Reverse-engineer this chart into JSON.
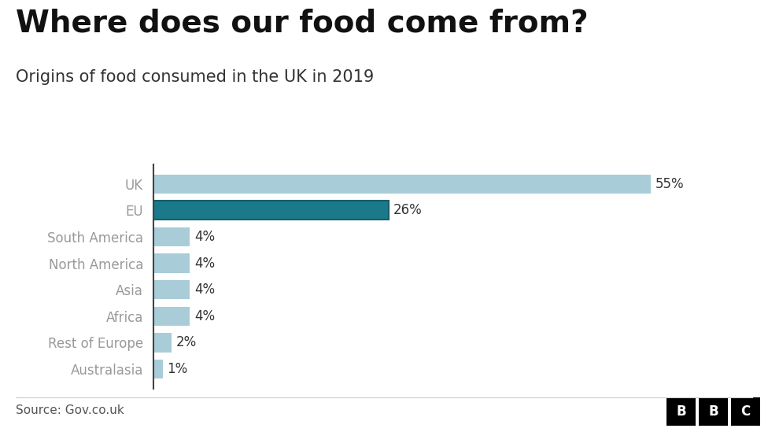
{
  "title": "Where does our food come from?",
  "subtitle": "Origins of food consumed in the UK in 2019",
  "categories": [
    "UK",
    "EU",
    "South America",
    "North America",
    "Asia",
    "Africa",
    "Rest of Europe",
    "Australasia"
  ],
  "values": [
    55,
    26,
    4,
    4,
    4,
    4,
    2,
    1
  ],
  "labels": [
    "55%",
    "26%",
    "4%",
    "4%",
    "4%",
    "4%",
    "2%",
    "1%"
  ],
  "bar_colors": [
    "#a8cdd8",
    "#1a7a8a",
    "#a8cdd8",
    "#a8cdd8",
    "#a8cdd8",
    "#a8cdd8",
    "#a8cdd8",
    "#a8cdd8"
  ],
  "background_color": "#ffffff",
  "source_text": "Source: Gov.co.uk",
  "title_fontsize": 28,
  "subtitle_fontsize": 15,
  "label_fontsize": 12,
  "tick_fontsize": 12,
  "source_fontsize": 11,
  "ylabel_color": "#999999",
  "label_color": "#333333",
  "bar_edge_color_eu": "#155f6e",
  "xlim": [
    0,
    62
  ]
}
